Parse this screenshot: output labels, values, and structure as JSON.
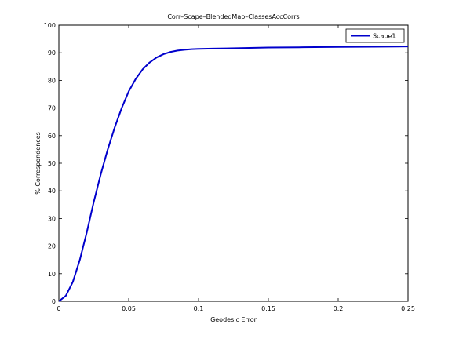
{
  "chart_data": {
    "type": "line",
    "title": "Corr–Scape–BlendedMap–ClassesAccCorrs",
    "xlabel": "Geodesic Error",
    "ylabel": "% Correspondences",
    "xlim": [
      0,
      0.25
    ],
    "ylim": [
      0,
      100
    ],
    "xticks": [
      0,
      0.05,
      0.1,
      0.15,
      0.2,
      0.25
    ],
    "xtick_labels": [
      "0",
      "0.05",
      "0.1",
      "0.15",
      "0.2",
      "0.25"
    ],
    "yticks": [
      0,
      10,
      20,
      30,
      40,
      50,
      60,
      70,
      80,
      90,
      100
    ],
    "ytick_labels": [
      "0",
      "10",
      "20",
      "30",
      "40",
      "50",
      "60",
      "70",
      "80",
      "90",
      "100"
    ],
    "grid": false,
    "legend_position": "top-right",
    "series": [
      {
        "name": "Scape1",
        "color": "#0000cc",
        "x": [
          0,
          0.005,
          0.01,
          0.015,
          0.02,
          0.025,
          0.03,
          0.035,
          0.04,
          0.045,
          0.05,
          0.055,
          0.06,
          0.065,
          0.07,
          0.075,
          0.08,
          0.085,
          0.09,
          0.095,
          0.1,
          0.11,
          0.12,
          0.13,
          0.14,
          0.15,
          0.175,
          0.2,
          0.225,
          0.25
        ],
        "y": [
          0,
          2,
          7,
          15,
          25,
          36,
          46,
          55,
          63,
          70,
          76,
          80.5,
          84,
          86.5,
          88.3,
          89.5,
          90.3,
          90.8,
          91.1,
          91.3,
          91.4,
          91.5,
          91.6,
          91.7,
          91.8,
          91.9,
          92.0,
          92.1,
          92.2,
          92.3
        ]
      }
    ]
  }
}
